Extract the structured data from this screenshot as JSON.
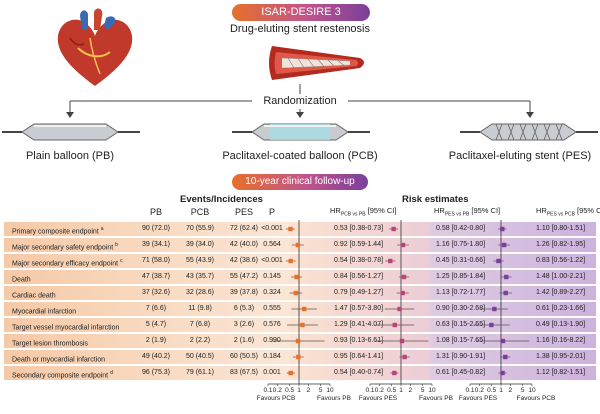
{
  "header": {
    "study_title": "ISAR-DESIRE 3",
    "subtitle": "Drug-eluting stent restenosis",
    "randomization": "Randomization",
    "followup": "10-year clinical follow-up"
  },
  "arms": [
    {
      "label": "Plain balloon (PB)"
    },
    {
      "label": "Paclitaxel-coated balloon (PCB)"
    },
    {
      "label": "Paclitaxel-eluting stent (PES)"
    }
  ],
  "table": {
    "events_header": "Events/Incidences",
    "risk_header": "Risk estimates",
    "col_pb": "PB",
    "col_pcb": "PCB",
    "col_pes": "PES",
    "col_p": "P",
    "hr1_prefix": "HR",
    "hr1_sub": "PCB vs PB",
    "hr1_suffix": " [95% CI]",
    "hr2_prefix": "HR",
    "hr2_sub": "PES vs PB",
    "hr2_suffix": " [95% CI]",
    "hr3_prefix": "HR",
    "hr3_sub": "PES vs PCB",
    "hr3_suffix": " [95% CI]",
    "rows": [
      {
        "endpoint": "Primary composite endpoint",
        "sup": "a",
        "pb": "90 (72.0)",
        "pcb": "70 (55.9)",
        "pes": "72 (62.4)",
        "p": "<0.001",
        "hr1": "0.53 [0.38-0.73]",
        "hr2": "0.58 [0.42-0.80]",
        "hr3": "1.10 [0.80-1.51]"
      },
      {
        "endpoint": "Major secondary safety endpoint",
        "sup": "b",
        "pb": "39 (34.1)",
        "pcb": "39 (34.0)",
        "pes": "42 (40.0)",
        "p": "0.564",
        "hr1": "0.92 [0.59-1.44]",
        "hr2": "1.16 [0.75-1.80]",
        "hr3": "1.26 [0.82-1.95]"
      },
      {
        "endpoint": "Major secondary efficacy endpoint",
        "sup": "c",
        "pb": "71 (58.0)",
        "pcb": "55 (43.9)",
        "pes": "42 (38.6)",
        "p": "<0.001",
        "hr1": "0.54 [0.38-0.78]",
        "hr2": "0.45 [0.31-0.66]",
        "hr3": "0.83 [0.56-1.22]"
      },
      {
        "endpoint": "Death",
        "sup": "",
        "pb": "47 (38.7)",
        "pcb": "43 (35.7)",
        "pes": "55 (47.2)",
        "p": "0.145",
        "hr1": "0.84 [0.56-1.27]",
        "hr2": "1.25 [0.85-1.84]",
        "hr3": "1.48 [1.00-2.21]"
      },
      {
        "endpoint": "Cardiac death",
        "sup": "",
        "pb": "37 (32.6)",
        "pcb": "32 (28.6)",
        "pes": "39 (37.8)",
        "p": "0.324",
        "hr1": "0.79 [0.49-1.27]",
        "hr2": "1.13 [0.72-1.77]",
        "hr3": "1.42 [0.89-2.27]"
      },
      {
        "endpoint": "Myocardial infarction",
        "sup": "",
        "pb": "7 (6.6)",
        "pcb": "11 (9.8)",
        "pes": "6 (5.3)",
        "p": "0.555",
        "hr1": "1.47 [0.57-3.80]",
        "hr2": "0.90 [0.30-2.68]",
        "hr3": "0.61 [0.23-1.66]"
      },
      {
        "endpoint": "Target vessel myocardial infarction",
        "sup": "",
        "pb": "5 (4.7)",
        "pcb": "7 (6.8)",
        "pes": "3 (2.6)",
        "p": "0.576",
        "hr1": "1.29 [0.41-4.07]",
        "hr2": "0.63 [0.15-2.65]",
        "hr3": "0.49 [0.13-1.90]"
      },
      {
        "endpoint": "Target lesion thrombosis",
        "sup": "",
        "pb": "2 (1.9)",
        "pcb": "2 (2.2)",
        "pes": "2 (1.6)",
        "p": "0.990",
        "hr1": "0.93 [0.13-6.61]",
        "hr2": "1.08 [0.15-7.65]",
        "hr3": "1.16 [0.16-8.22]"
      },
      {
        "endpoint": "Death or myocardial infarction",
        "sup": "",
        "pb": "49 (40.2)",
        "pcb": "50 (40.5)",
        "pes": "60 (50.5)",
        "p": "0.184",
        "hr1": "0.95 [0.64-1.41]",
        "hr2": "1.31 [0.90-1.91]",
        "hr3": "1.38 [0.95-2.01]"
      },
      {
        "endpoint": "Secondary composite endpoint",
        "sup": "d",
        "pb": "96 (75.3)",
        "pcb": "79 (61.1)",
        "pes": "83 (67.5)",
        "p": "0.001",
        "hr1": "0.54 [0.40-0.74]",
        "hr2": "0.61 [0.45-0.82]",
        "hr3": "1.12 [0.82-1.51]"
      }
    ]
  },
  "axis": {
    "ticks": [
      "0.1",
      "0.2",
      "0.5",
      "1",
      "2",
      "5",
      "10"
    ],
    "favours": [
      {
        "left": "Favours PCB",
        "right": "Favours PB"
      },
      {
        "left": "Favours PES",
        "right": "Favours PB"
      },
      {
        "left": "Favours PES",
        "right": "Favours PCB"
      }
    ]
  },
  "colors": {
    "orange": "#e8702a",
    "magenta": "#b8447e",
    "purple": "#7a3f9a"
  }
}
